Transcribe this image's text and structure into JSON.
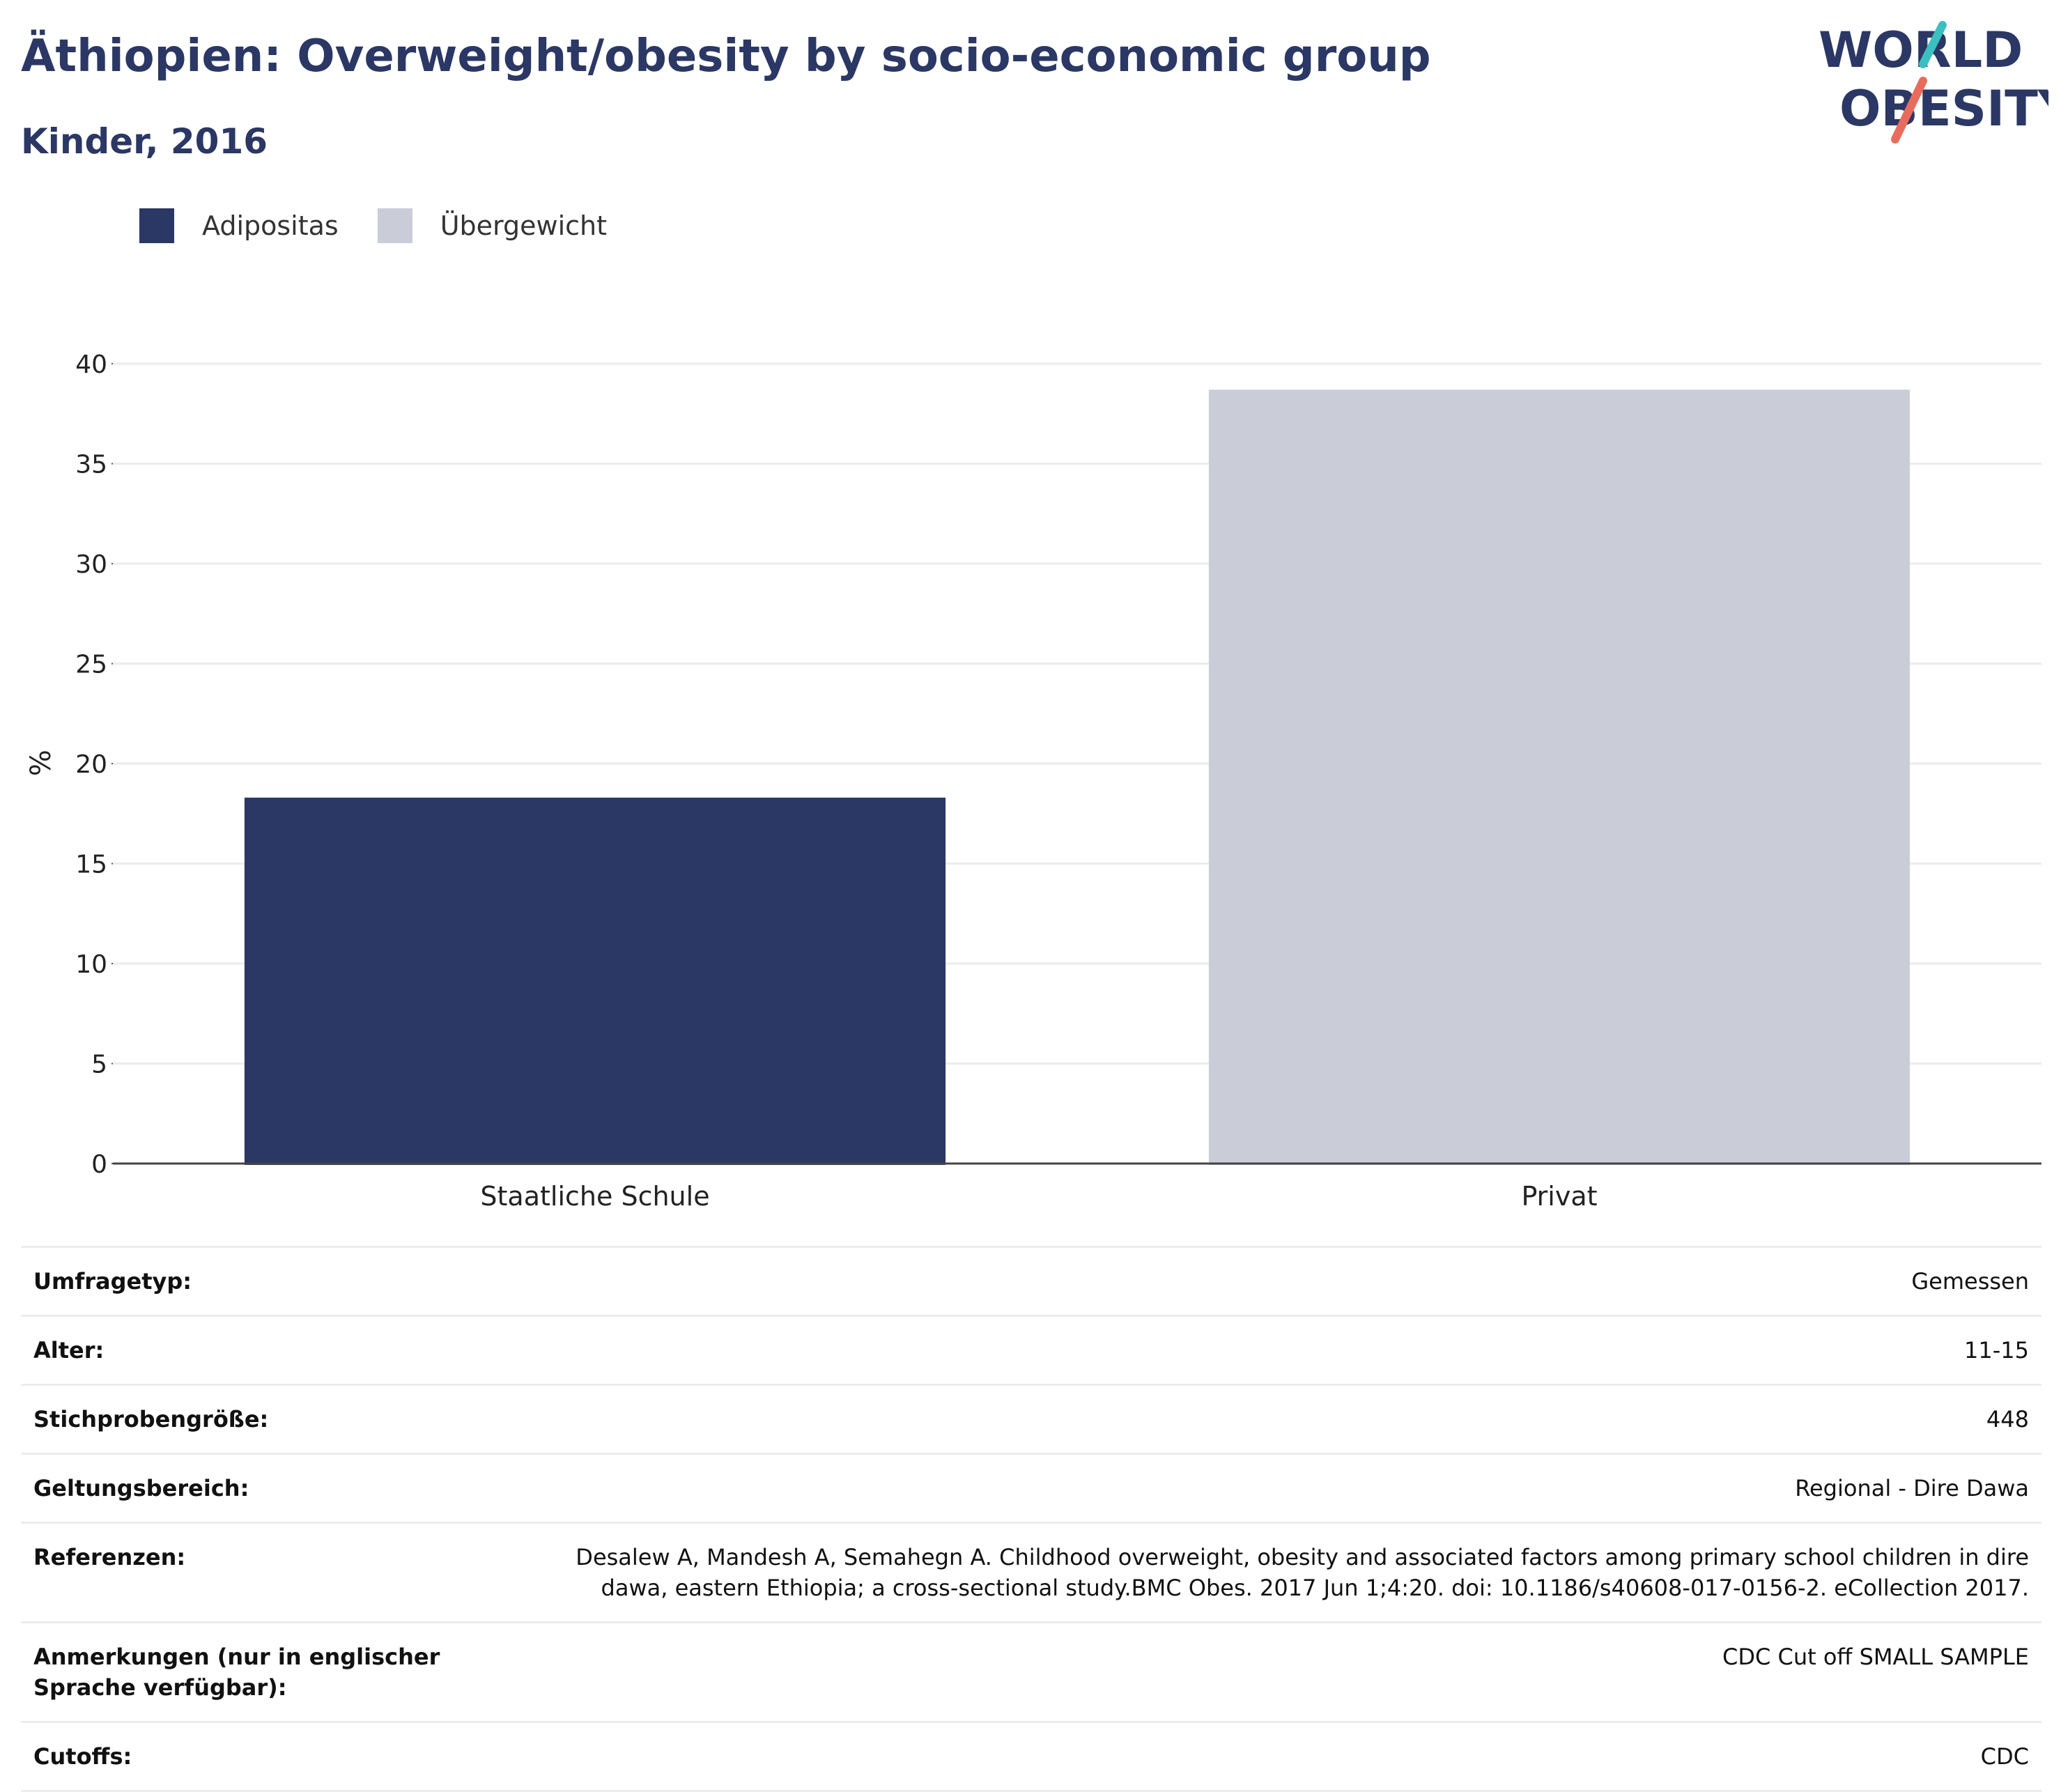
{
  "header": {
    "title": "Äthiopien: Overweight/obesity by socio-economic group",
    "subtitle": "Kinder, 2016"
  },
  "logo": {
    "line1": "WORLD",
    "line2": "OBESITY",
    "accent_teal": "#3bbfc1",
    "accent_red": "#e86c5d"
  },
  "chart_data": {
    "type": "bar",
    "categories": [
      "Staatliche Schule",
      "Privat"
    ],
    "series": [
      {
        "name": "Adipositas",
        "color": "#2b3764",
        "values": [
          18.3,
          null
        ]
      },
      {
        "name": "Übergewicht",
        "color": "#cacdd8",
        "values": [
          null,
          38.7
        ]
      }
    ],
    "ylabel": "%",
    "ylim": [
      0,
      40
    ],
    "yticks": [
      "0",
      "5",
      "10",
      "15",
      "20",
      "25",
      "30",
      "35",
      "40"
    ],
    "grid": true,
    "legend_position": "top-left"
  },
  "info": [
    {
      "key": "Umfragetyp:",
      "value": "Gemessen"
    },
    {
      "key": "Alter:",
      "value": "11-15"
    },
    {
      "key": "Stichprobengröße:",
      "value": "448"
    },
    {
      "key": "Geltungsbereich:",
      "value": "Regional - Dire Dawa"
    },
    {
      "key": "Referenzen:",
      "value": "Desalew A, Mandesh A, Semahegn A. Childhood overweight, obesity and associated factors among primary school children in dire dawa, eastern Ethiopia; a cross-sectional study.BMC Obes. 2017 Jun 1;4:20. doi: 10.1186/s40608-017-0156-2. eCollection 2017."
    },
    {
      "key": "Anmerkungen (nur in englischer Sprache verfügbar):",
      "value": "CDC Cut off SMALL SAMPLE"
    },
    {
      "key": "Cutoffs:",
      "value": "CDC"
    }
  ]
}
